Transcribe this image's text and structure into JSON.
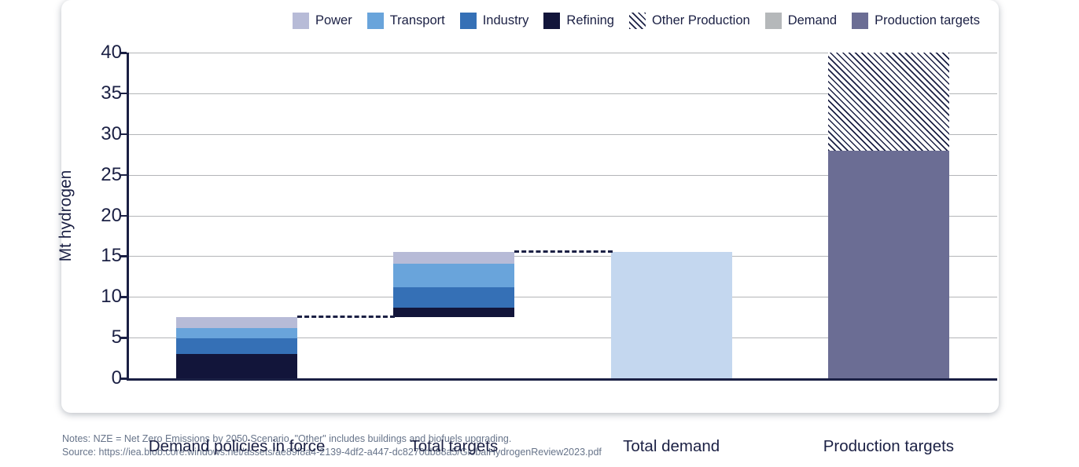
{
  "legend": {
    "items": [
      {
        "label": "Power",
        "color": "#b7bbd7",
        "style": "solid"
      },
      {
        "label": "Transport",
        "color": "#69a4db",
        "style": "solid"
      },
      {
        "label": "Industry",
        "color": "#3570b6",
        "style": "solid"
      },
      {
        "label": "Refining",
        "color": "#12153a",
        "style": "solid"
      },
      {
        "label": "Other Production",
        "color": "hatch",
        "style": "hatch"
      },
      {
        "label": "Demand",
        "color": "#b5b8ba",
        "style": "solid"
      },
      {
        "label": "Production targets",
        "color": "#6b6d94",
        "style": "solid"
      }
    ]
  },
  "chart_data": {
    "type": "bar",
    "variant": "stacked-waterfall",
    "title": "",
    "ylabel": "Mt hydrogen",
    "xlabel": "",
    "ylim": [
      0,
      40
    ],
    "yticks": [
      0,
      5,
      10,
      15,
      20,
      25,
      30,
      35,
      40
    ],
    "grid": true,
    "legend_position": "top-right",
    "categories": [
      "Demand policies in force",
      "Total targets",
      "Total demand",
      "Production targets"
    ],
    "bars": [
      {
        "category": "Demand policies in force",
        "base": 0,
        "top": 7.5,
        "segments": [
          {
            "name": "Refining",
            "value": 3.0
          },
          {
            "name": "Industry",
            "value": 1.9
          },
          {
            "name": "Transport",
            "value": 1.3
          },
          {
            "name": "Power",
            "value": 1.3
          }
        ]
      },
      {
        "category": "Total targets",
        "base": 7.5,
        "top": 15.5,
        "segments": [
          {
            "name": "Refining",
            "value": 1.2
          },
          {
            "name": "Industry",
            "value": 2.5
          },
          {
            "name": "Transport",
            "value": 2.9
          },
          {
            "name": "Power",
            "value": 1.4
          }
        ]
      },
      {
        "category": "Total demand",
        "base": 0,
        "top": 15.5,
        "segments": [
          {
            "name": "Demand",
            "value": 15.5,
            "color_override": "#c4d7ef"
          }
        ]
      },
      {
        "category": "Production targets",
        "base": 0,
        "top": 40,
        "segments": [
          {
            "name": "Production targets",
            "value": 28
          },
          {
            "name": "Other Production",
            "value": 12,
            "hatch": true
          }
        ]
      }
    ],
    "connectors": [
      {
        "value": 7.5,
        "from": 0,
        "to": 1
      },
      {
        "value": 15.5,
        "from": 1,
        "to": 2
      }
    ],
    "colors": {
      "Power": "#b7bbd7",
      "Transport": "#69a4db",
      "Industry": "#3570b6",
      "Refining": "#12153a",
      "Other Production": "hatch",
      "Demand": "#b5b8ba",
      "Production targets": "#6b6d94",
      "axis": "#1b2044",
      "gridline": "#b3b5b8",
      "total_demand_bar": "#c4d7ef"
    }
  },
  "footer": {
    "notes_line": "Notes: NZE = Net Zero Emissions by 2050 Scenario. \"Other\" includes buildings and biofuels upgrading.",
    "source_line": "Source: https://iea.blob.core.windows.net/assets/ae89f8a4-2139-4df2-a447-dc8270db88a5/GlobalHydrogenReview2023.pdf"
  }
}
